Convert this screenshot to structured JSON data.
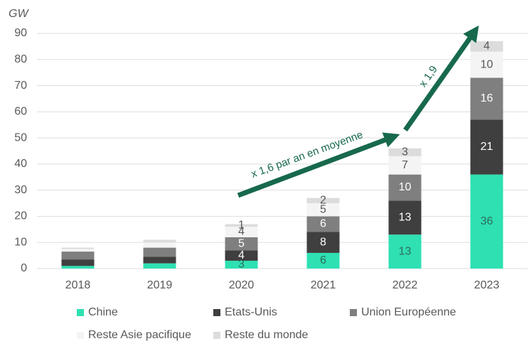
{
  "chart_data": {
    "type": "bar",
    "stacked": true,
    "y_axis_label": "GW",
    "categories": [
      "2018",
      "2019",
      "2020",
      "2021",
      "2022",
      "2023"
    ],
    "series": [
      {
        "name": "Chine",
        "color": "#2ee0b2",
        "values": [
          1,
          2,
          3,
          6,
          13,
          36
        ],
        "value_labels": [
          null,
          null,
          "3",
          "6",
          "13",
          "36"
        ]
      },
      {
        "name": "Etats-Unis",
        "color": "#3f3f3f",
        "values": [
          2.5,
          2.5,
          4,
          8,
          13,
          21
        ],
        "value_labels": [
          null,
          null,
          "4",
          "8",
          "13",
          "21"
        ]
      },
      {
        "name": "Union Européenne",
        "color": "#7f7f7f",
        "values": [
          3,
          3.5,
          5,
          6,
          10,
          16
        ],
        "value_labels": [
          null,
          null,
          "5",
          "6",
          "10",
          "16"
        ]
      },
      {
        "name": "Reste Asie pacifique",
        "color": "#f4f4f4",
        "values": [
          1,
          2,
          4,
          5,
          7,
          10
        ],
        "value_labels": [
          null,
          null,
          "4",
          "5",
          "7",
          "10"
        ]
      },
      {
        "name": "Reste du monde",
        "color": "#dcdcdc",
        "values": [
          0.5,
          1,
          1,
          2,
          3,
          4
        ],
        "value_labels": [
          null,
          null,
          "1",
          "2",
          "3",
          "4"
        ]
      }
    ],
    "ylim": [
      0,
      90
    ],
    "yticks": [
      0,
      10,
      20,
      30,
      40,
      50,
      60,
      70,
      80,
      90
    ],
    "grid": true,
    "annotations": [
      "x 1,6 par an en moyenne",
      "x 1,9"
    ]
  }
}
